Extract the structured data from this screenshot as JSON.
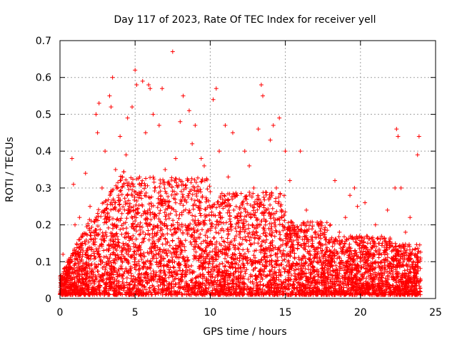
{
  "chart_data": {
    "type": "scatter",
    "title": "Day 117 of 2023, Rate Of TEC Index for receiver yell",
    "xlabel": "GPS time / hours",
    "ylabel": "ROTI / TECUs",
    "xlim": [
      0,
      25
    ],
    "ylim": [
      0,
      0.7
    ],
    "x_ticks": [
      "0",
      "5",
      "10",
      "15",
      "20",
      "25"
    ],
    "y_ticks": [
      "0",
      "0.1",
      "0.2",
      "0.3",
      "0.4",
      "0.5",
      "0.6",
      "0.7"
    ],
    "grid": true,
    "marker": "plus",
    "color": "#ff0000",
    "series": [
      {
        "name": "ROTI",
        "points": [
          [
            0.1,
            0.05
          ],
          [
            0.2,
            0.12
          ],
          [
            0.3,
            0.08
          ],
          [
            0.5,
            0.03
          ],
          [
            0.7,
            0.1
          ],
          [
            0.8,
            0.38
          ],
          [
            0.9,
            0.31
          ],
          [
            1.0,
            0.2
          ],
          [
            1.1,
            0.06
          ],
          [
            1.3,
            0.22
          ],
          [
            1.5,
            0.15
          ],
          [
            1.7,
            0.34
          ],
          [
            1.9,
            0.09
          ],
          [
            2.0,
            0.25
          ],
          [
            2.2,
            0.18
          ],
          [
            2.4,
            0.5
          ],
          [
            2.5,
            0.45
          ],
          [
            2.6,
            0.53
          ],
          [
            2.8,
            0.3
          ],
          [
            3.0,
            0.4
          ],
          [
            3.2,
            0.22
          ],
          [
            3.3,
            0.55
          ],
          [
            3.4,
            0.52
          ],
          [
            3.5,
            0.6
          ],
          [
            3.7,
            0.35
          ],
          [
            3.9,
            0.28
          ],
          [
            4.0,
            0.44
          ],
          [
            4.2,
            0.15
          ],
          [
            4.4,
            0.39
          ],
          [
            4.5,
            0.49
          ],
          [
            4.6,
            0.25
          ],
          [
            4.8,
            0.52
          ],
          [
            5.0,
            0.62
          ],
          [
            5.1,
            0.58
          ],
          [
            5.3,
            0.33
          ],
          [
            5.5,
            0.59
          ],
          [
            5.7,
            0.45
          ],
          [
            5.9,
            0.58
          ],
          [
            6.0,
            0.57
          ],
          [
            6.2,
            0.5
          ],
          [
            6.4,
            0.12
          ],
          [
            6.6,
            0.47
          ],
          [
            6.8,
            0.57
          ],
          [
            7.0,
            0.35
          ],
          [
            7.2,
            0.25
          ],
          [
            7.5,
            0.67
          ],
          [
            7.7,
            0.38
          ],
          [
            8.0,
            0.48
          ],
          [
            8.2,
            0.55
          ],
          [
            8.4,
            0.3
          ],
          [
            8.6,
            0.51
          ],
          [
            8.8,
            0.42
          ],
          [
            9.0,
            0.47
          ],
          [
            9.2,
            0.2
          ],
          [
            9.4,
            0.38
          ],
          [
            9.6,
            0.36
          ],
          [
            9.8,
            0.15
          ],
          [
            10.0,
            0.29
          ],
          [
            10.2,
            0.54
          ],
          [
            10.4,
            0.57
          ],
          [
            10.6,
            0.4
          ],
          [
            10.8,
            0.22
          ],
          [
            11.0,
            0.47
          ],
          [
            11.2,
            0.33
          ],
          [
            11.5,
            0.45
          ],
          [
            11.8,
            0.28
          ],
          [
            12.0,
            0.18
          ],
          [
            12.3,
            0.4
          ],
          [
            12.6,
            0.36
          ],
          [
            12.9,
            0.3
          ],
          [
            13.2,
            0.46
          ],
          [
            13.4,
            0.58
          ],
          [
            13.5,
            0.55
          ],
          [
            13.7,
            0.24
          ],
          [
            14.0,
            0.43
          ],
          [
            14.2,
            0.47
          ],
          [
            14.4,
            0.3
          ],
          [
            14.6,
            0.49
          ],
          [
            14.8,
            0.2
          ],
          [
            15.0,
            0.4
          ],
          [
            15.3,
            0.32
          ],
          [
            15.6,
            0.18
          ],
          [
            16.0,
            0.4
          ],
          [
            16.4,
            0.24
          ],
          [
            16.8,
            0.15
          ],
          [
            17.2,
            0.2
          ],
          [
            17.6,
            0.12
          ],
          [
            18.0,
            0.2
          ],
          [
            18.3,
            0.32
          ],
          [
            18.6,
            0.18
          ],
          [
            19.0,
            0.22
          ],
          [
            19.3,
            0.28
          ],
          [
            19.6,
            0.3
          ],
          [
            19.8,
            0.25
          ],
          [
            20.0,
            0.15
          ],
          [
            20.3,
            0.26
          ],
          [
            20.6,
            0.12
          ],
          [
            21.0,
            0.2
          ],
          [
            21.4,
            0.1
          ],
          [
            21.8,
            0.24
          ],
          [
            22.1,
            0.15
          ],
          [
            22.3,
            0.3
          ],
          [
            22.4,
            0.46
          ],
          [
            22.5,
            0.44
          ],
          [
            22.7,
            0.3
          ],
          [
            23.0,
            0.18
          ],
          [
            23.3,
            0.22
          ],
          [
            23.6,
            0.08
          ],
          [
            23.8,
            0.39
          ],
          [
            23.9,
            0.44
          ],
          [
            24.0,
            0.05
          ]
        ]
      }
    ]
  }
}
